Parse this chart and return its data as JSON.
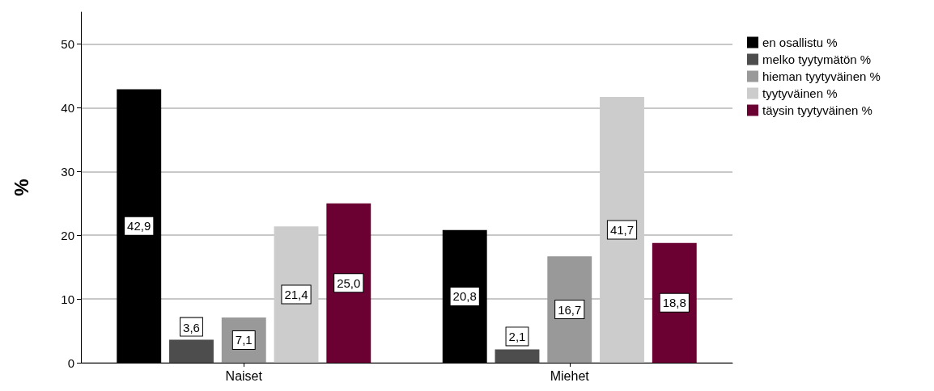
{
  "chart_data": {
    "type": "bar",
    "ylabel": "%",
    "categories": [
      "Naiset",
      "Miehet"
    ],
    "series": [
      {
        "name": "en osallistu %",
        "color": "#000000",
        "values": [
          42.9,
          20.8
        ],
        "value_labels": [
          "42,9",
          "20,8"
        ]
      },
      {
        "name": "melko tyytymätön %",
        "color": "#4d4d4d",
        "values": [
          3.6,
          2.1
        ],
        "value_labels": [
          "3,6",
          "2,1"
        ]
      },
      {
        "name": "hieman tyytyväinen %",
        "color": "#999999",
        "values": [
          7.1,
          16.7
        ],
        "value_labels": [
          "7,1",
          "16,7"
        ]
      },
      {
        "name": "tyytyväinen %",
        "color": "#cccccc",
        "values": [
          21.4,
          41.7
        ],
        "value_labels": [
          "21,4",
          "41,7"
        ]
      },
      {
        "name": "täysin tyytyväinen %",
        "color": "#6b0033",
        "values": [
          25.0,
          18.8
        ],
        "value_labels": [
          "25,0",
          "18,8"
        ]
      }
    ],
    "ylim": [
      0,
      55
    ],
    "yticks": [
      0,
      10,
      20,
      30,
      40,
      50
    ],
    "grid": "y",
    "legend": "top right"
  }
}
